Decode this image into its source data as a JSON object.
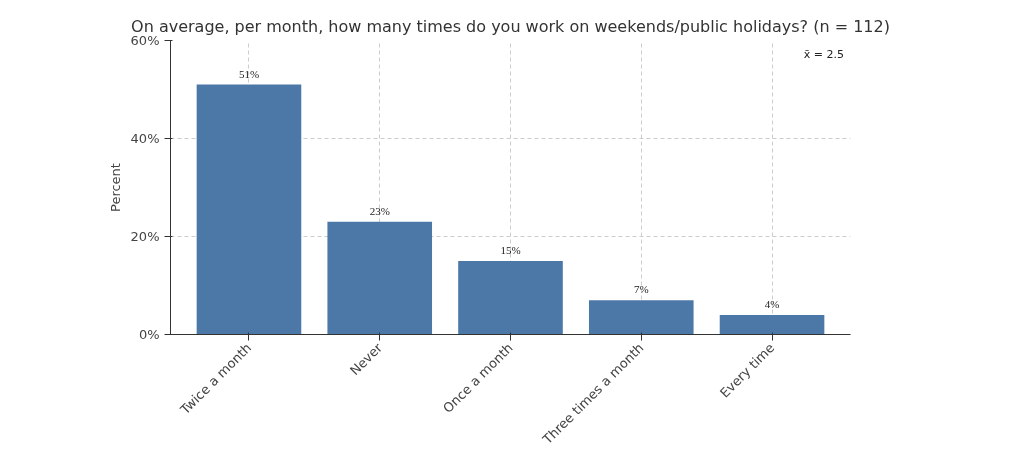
{
  "chart_data": {
    "type": "bar",
    "title": "On average, per month, how many times do you work on weekends/public holidays? (n = 112)",
    "ylabel": "Percent",
    "categories": [
      "Twice a month",
      "Never",
      "Once a month",
      "Three times a month",
      "Every time"
    ],
    "values": [
      51,
      23,
      15,
      7,
      4
    ],
    "value_labels": [
      "51%",
      "23%",
      "15%",
      "7%",
      "4%"
    ],
    "color": "#4c78a8",
    "ylim": [
      0,
      60
    ],
    "yticks": [
      {
        "value": 0,
        "label": "0%"
      },
      {
        "value": 20,
        "label": "20%"
      },
      {
        "value": 40,
        "label": "40%"
      },
      {
        "value": 60,
        "label": "60%"
      }
    ],
    "grid": true,
    "annotations": [
      "x̄ = 2.5"
    ]
  }
}
